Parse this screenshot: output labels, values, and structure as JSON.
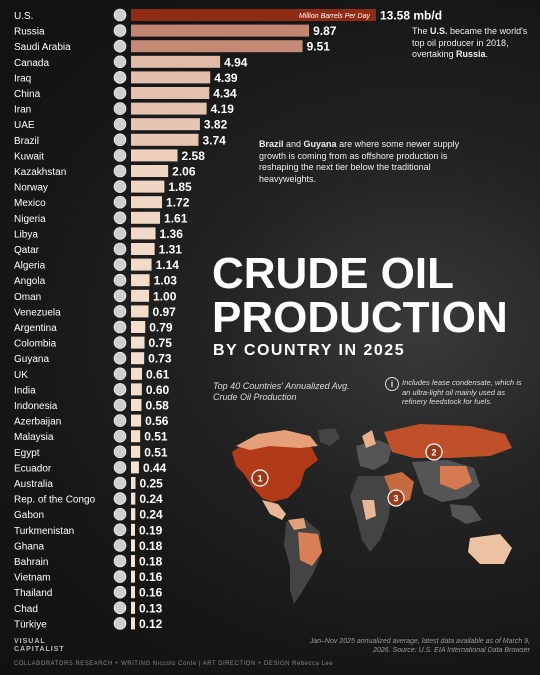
{
  "title": {
    "line1": "CRUDE OIL",
    "line2": "PRODUCTION",
    "line3": "BY COUNTRY IN 2025"
  },
  "subtitle": "Top 40 Countries' Annualized Avg. Crude Oil Production",
  "note": "Includes lease condensate, which is an ultra-light oil mainly used as refinery feedstock for fuels.",
  "annotations": {
    "us_pre": "The ",
    "us_bold": "U.S.",
    "us_mid": " became the world's top oil producer in 2018, overtaking ",
    "us_bold2": "Russia",
    "us_post": ".",
    "brazil_bold1": "Brazil",
    "brazil_and": " and ",
    "brazil_bold2": "Guyana",
    "brazil_post": " are where some newer supply growth is coming from as offshore production is reshaping the next tier below the traditional heavyweights."
  },
  "map_markers": [
    "1",
    "2",
    "3"
  ],
  "source": "Jan–Nov 2025 annualized average, latest data available as of March 9, 2026. Source: U.S. EIA International Data Browser",
  "branding": {
    "logo_line1": "VISUAL",
    "logo_line2": "CAPITALIST",
    "collaborators": "COLLABORATORS   RESEARCH + WRITING Niccolo Conte   |   ART DIRECTION + DESIGN Rebecca Lee"
  },
  "colors": {
    "bar_dark": "#8f2a14",
    "bar_light": "#f7e4d2",
    "text": "#ffffff",
    "background": "#1a1a1a"
  },
  "chart_data": {
    "type": "bar",
    "orientation": "horizontal",
    "unit_label": "Million Barrels Per Day",
    "first_value_suffix": " mb/d",
    "categories": [
      "U.S.",
      "Russia",
      "Saudi Arabia",
      "Canada",
      "Iraq",
      "China",
      "Iran",
      "UAE",
      "Brazil",
      "Kuwait",
      "Kazakhstan",
      "Norway",
      "Mexico",
      "Nigeria",
      "Libya",
      "Qatar",
      "Algeria",
      "Angola",
      "Oman",
      "Venezuela",
      "Argentina",
      "Colombia",
      "Guyana",
      "UK",
      "India",
      "Indonesia",
      "Azerbaijan",
      "Malaysia",
      "Egypt",
      "Ecuador",
      "Australia",
      "Rep. of the Congo",
      "Gabon",
      "Turkmenistan",
      "Ghana",
      "Bahrain",
      "Vietnam",
      "Thailand",
      "Chad",
      "Türkiye"
    ],
    "values": [
      13.58,
      9.87,
      9.51,
      4.94,
      4.39,
      4.34,
      4.19,
      3.82,
      3.74,
      2.58,
      2.06,
      1.85,
      1.72,
      1.61,
      1.36,
      1.31,
      1.14,
      1.03,
      1.0,
      0.97,
      0.79,
      0.75,
      0.73,
      0.61,
      0.6,
      0.58,
      0.56,
      0.51,
      0.51,
      0.44,
      0.25,
      0.24,
      0.24,
      0.19,
      0.18,
      0.18,
      0.16,
      0.16,
      0.13,
      0.12
    ],
    "value_labels": [
      "13.58",
      "9.87",
      "9.51",
      "4.94",
      "4.39",
      "4.34",
      "4.19",
      "3.82",
      "3.74",
      "2.58",
      "2.06",
      "1.85",
      "1.72",
      "1.61",
      "1.36",
      "1.31",
      "1.14",
      "1.03",
      "1.00",
      "0.97",
      "0.79",
      "0.75",
      "0.73",
      "0.61",
      "0.60",
      "0.58",
      "0.56",
      "0.51",
      "0.51",
      "0.44",
      "0.25",
      "0.24",
      "0.24",
      "0.19",
      "0.18",
      "0.18",
      "0.16",
      "0.16",
      "0.13",
      "0.12"
    ]
  }
}
